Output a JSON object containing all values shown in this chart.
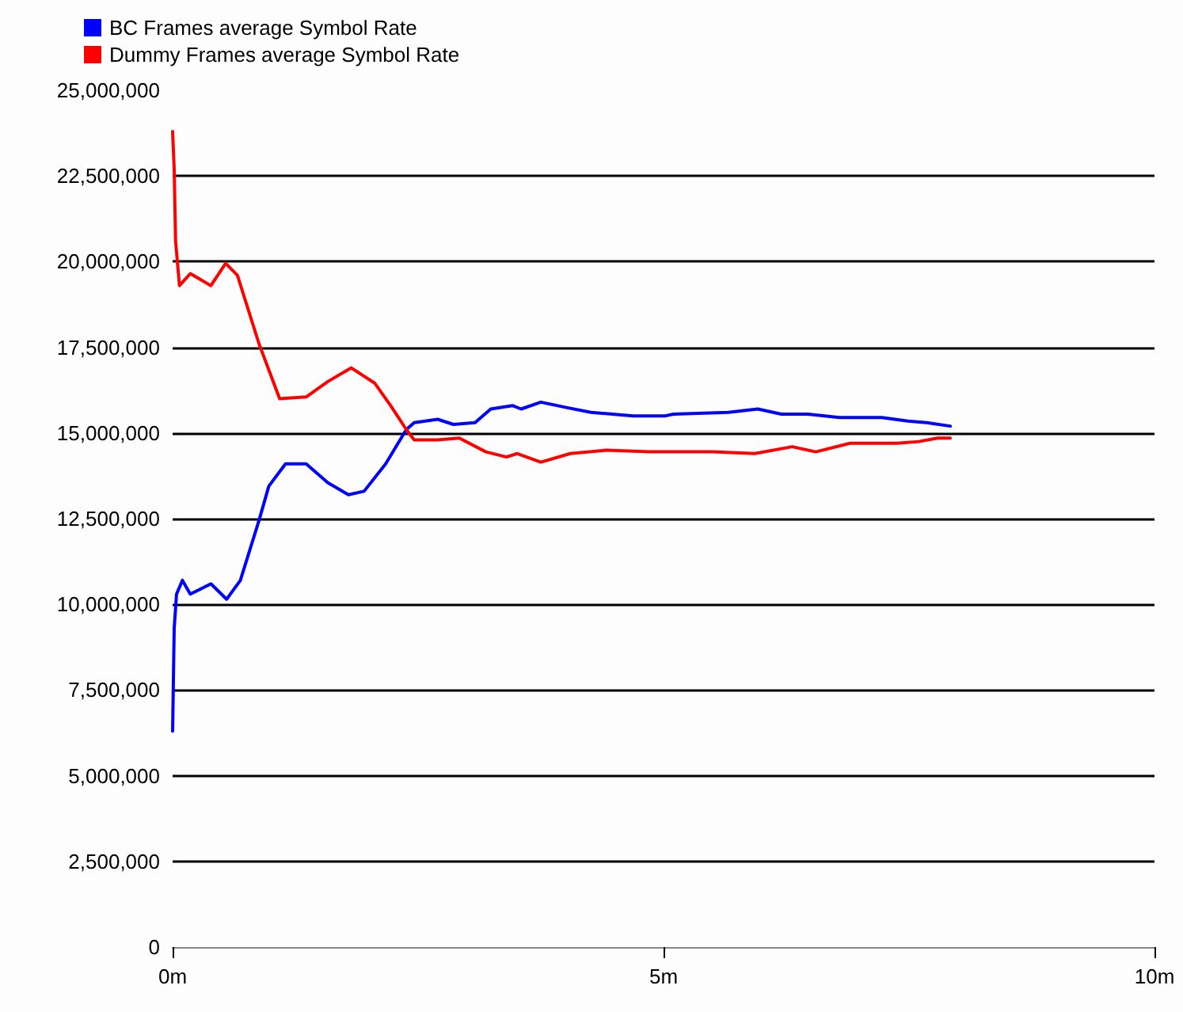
{
  "chart_data": {
    "type": "line",
    "xlim": [
      0,
      10
    ],
    "xticks": [
      {
        "value": 0,
        "label": "0m"
      },
      {
        "value": 5,
        "label": "5m"
      },
      {
        "value": 10,
        "label": "10m"
      }
    ],
    "ylim": [
      0,
      25000000
    ],
    "yticks": [
      {
        "value": 0,
        "label": "0"
      },
      {
        "value": 2500000,
        "label": "2,500,000"
      },
      {
        "value": 5000000,
        "label": "5,000,000"
      },
      {
        "value": 7500000,
        "label": "7,500,000"
      },
      {
        "value": 10000000,
        "label": "10,000,000"
      },
      {
        "value": 12500000,
        "label": "12,500,000"
      },
      {
        "value": 15000000,
        "label": "15,000,000"
      },
      {
        "value": 17500000,
        "label": "17,500,000"
      },
      {
        "value": 20000000,
        "label": "20,000,000"
      },
      {
        "value": 22500000,
        "label": "22,500,000"
      },
      {
        "value": 25000000,
        "label": "25,000,000"
      }
    ],
    "grid": "y",
    "legend": "top left",
    "marker": "none",
    "line_style": "solid",
    "series": [
      {
        "name": "BC Frames average Symbol Rate",
        "color": "#0000ff",
        "x": [
          0,
          0.016,
          0.04,
          0.1,
          0.18,
          0.39,
          0.55,
          0.69,
          0.88,
          0.98,
          1.15,
          1.36,
          1.58,
          1.79,
          1.95,
          2.17,
          2.38,
          2.46,
          2.7,
          2.86,
          3.08,
          3.24,
          3.46,
          3.55,
          3.75,
          4.0,
          4.26,
          4.69,
          5.02,
          5.1,
          5.66,
          5.96,
          6.2,
          6.47,
          6.79,
          7.22,
          7.49,
          7.68,
          7.92
        ],
        "values": [
          6300000,
          9300000,
          10300000,
          10700000,
          10300000,
          10600000,
          10150000,
          10700000,
          12450000,
          13450000,
          14100000,
          14100000,
          13550000,
          13200000,
          13300000,
          14100000,
          15100000,
          15300000,
          15400000,
          15250000,
          15300000,
          15700000,
          15800000,
          15700000,
          15900000,
          15750000,
          15600000,
          15500000,
          15500000,
          15550000,
          15600000,
          15700000,
          15550000,
          15550000,
          15450000,
          15450000,
          15350000,
          15300000,
          15200000
        ]
      },
      {
        "name": "Dummy Frames average Symbol Rate",
        "color": "#ff0000",
        "x": [
          0,
          0.016,
          0.03,
          0.07,
          0.18,
          0.39,
          0.54,
          0.66,
          0.88,
          1.09,
          1.36,
          1.58,
          1.82,
          2.06,
          2.22,
          2.38,
          2.46,
          2.7,
          2.92,
          3.19,
          3.4,
          3.51,
          3.75,
          4.05,
          4.42,
          4.85,
          5.5,
          5.93,
          6.31,
          6.55,
          6.9,
          7.38,
          7.6,
          7.79,
          7.92
        ],
        "values": [
          23800000,
          22700000,
          20600000,
          19300000,
          19650000,
          19300000,
          19950000,
          19600000,
          17600000,
          16000000,
          16050000,
          16500000,
          16900000,
          16450000,
          15800000,
          15100000,
          14800000,
          14800000,
          14850000,
          14450000,
          14300000,
          14400000,
          14150000,
          14400000,
          14500000,
          14450000,
          14450000,
          14400000,
          14600000,
          14450000,
          14700000,
          14700000,
          14750000,
          14850000,
          14850000
        ]
      }
    ]
  }
}
